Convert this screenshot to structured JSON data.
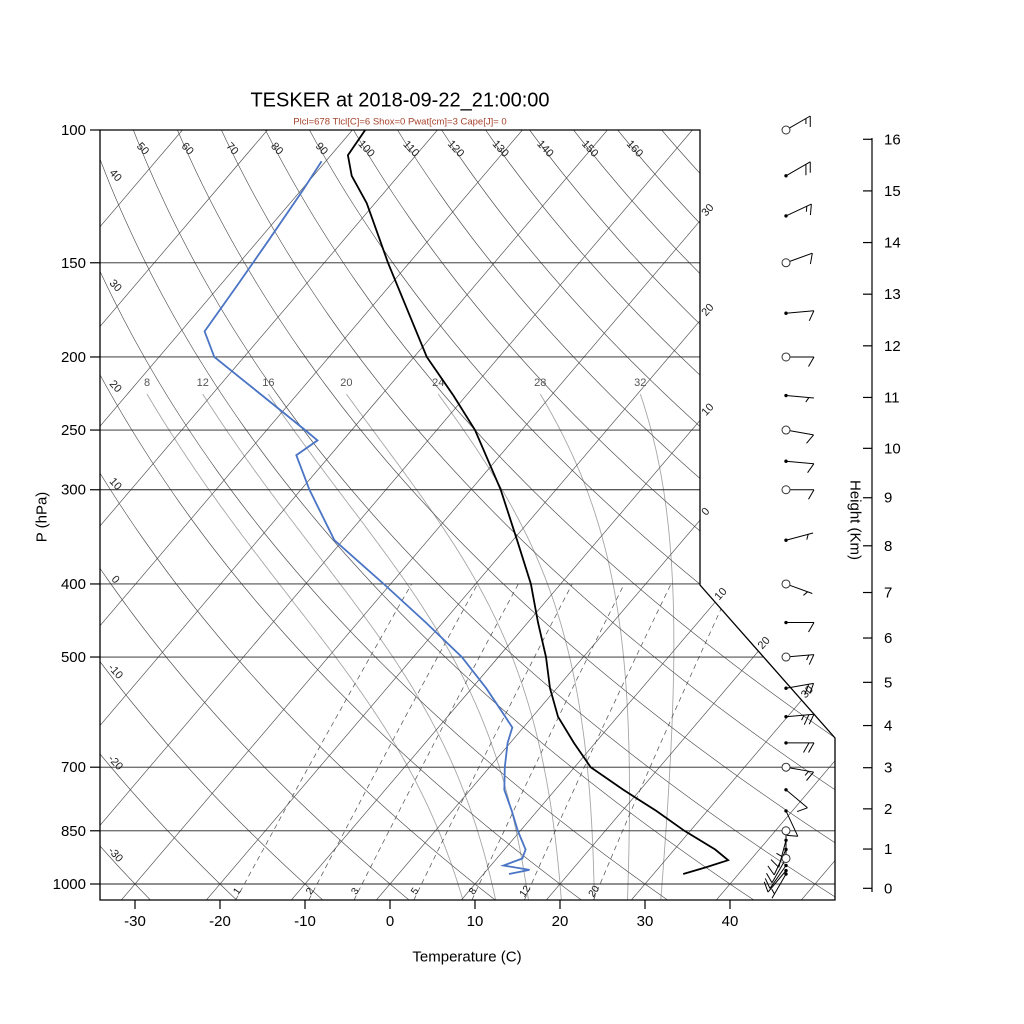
{
  "title": "TESKER at 2018-09-22_21:00:00",
  "subtitle": "Plcl=678 Tlcl[C]=6 Shox=0 Pwat[cm]=3 Cape[J]= 0",
  "axes": {
    "pressure": {
      "title": "P (hPa)",
      "ticks": [
        100,
        150,
        200,
        250,
        300,
        400,
        500,
        700,
        850,
        1000
      ]
    },
    "temperature": {
      "title": "Temperature (C)",
      "ticks": [
        -30,
        -20,
        -10,
        0,
        10,
        20,
        30,
        40
      ]
    },
    "height": {
      "title": "Height (Km)",
      "ticks": [
        0,
        1,
        2,
        3,
        4,
        5,
        6,
        7,
        8,
        9,
        10,
        11,
        12,
        13,
        14,
        15,
        16
      ]
    }
  },
  "colors": {
    "temperature_curve": "#000000",
    "dewpoint_curve": "#4a74c4",
    "subtitle_text": "#a7432c",
    "grid": "#4d4d4d",
    "moist_adiabat": "#a6a6a6",
    "border": "#000000"
  },
  "chart_data": {
    "type": "skewt_log_p_sounding",
    "station": "TESKER",
    "datetime": "2018-09-22_21:00:00",
    "indices": {
      "Plcl": 678,
      "Tlcl_C": 6,
      "Shox": 0,
      "Pwat_cm": 3,
      "Cape_J": 0
    },
    "pressure_range_hPa": [
      100,
      1050
    ],
    "temperature_axis_range_C": [
      -30,
      40
    ],
    "temperature_profile": [
      [
        970,
        33.5
      ],
      [
        950,
        35.5
      ],
      [
        930,
        37.4
      ],
      [
        900,
        34.8
      ],
      [
        850,
        29.3
      ],
      [
        800,
        24
      ],
      [
        750,
        18
      ],
      [
        700,
        11.9
      ],
      [
        650,
        7.5
      ],
      [
        600,
        3
      ],
      [
        550,
        -0.8
      ],
      [
        500,
        -4.4
      ],
      [
        450,
        -8.8
      ],
      [
        400,
        -13.5
      ],
      [
        350,
        -19.5
      ],
      [
        300,
        -26.5
      ],
      [
        250,
        -35.5
      ],
      [
        225,
        -41.5
      ],
      [
        200,
        -48.5
      ],
      [
        175,
        -55
      ],
      [
        150,
        -62.5
      ],
      [
        125,
        -71
      ],
      [
        115,
        -75.5
      ],
      [
        108,
        -78
      ],
      [
        100,
        -78.5
      ]
    ],
    "dewpoint_profile": [
      [
        970,
        13
      ],
      [
        958,
        15
      ],
      [
        945,
        11.5
      ],
      [
        925,
        13
      ],
      [
        900,
        12.5
      ],
      [
        850,
        9.7
      ],
      [
        800,
        7
      ],
      [
        750,
        4
      ],
      [
        700,
        1.8
      ],
      [
        650,
        -0.3
      ],
      [
        620,
        -1.3
      ],
      [
        600,
        -3.2
      ],
      [
        550,
        -8.3
      ],
      [
        500,
        -14.3
      ],
      [
        450,
        -22
      ],
      [
        400,
        -30.8
      ],
      [
        350,
        -41
      ],
      [
        300,
        -49
      ],
      [
        270,
        -54
      ],
      [
        258,
        -53
      ],
      [
        250,
        -55.5
      ],
      [
        225,
        -64
      ],
      [
        200,
        -73.5
      ],
      [
        185,
        -77.2
      ],
      [
        160,
        -78
      ],
      [
        140,
        -78.8
      ],
      [
        120,
        -79.8
      ],
      [
        110,
        -80.5
      ]
    ],
    "wind_profile": [
      [
        100,
        60,
        15
      ],
      [
        115,
        60,
        20
      ],
      [
        130,
        65,
        15
      ],
      [
        150,
        70,
        10
      ],
      [
        175,
        85,
        10
      ],
      [
        200,
        90,
        10
      ],
      [
        225,
        95,
        5
      ],
      [
        250,
        100,
        10
      ],
      [
        275,
        95,
        10
      ],
      [
        300,
        90,
        10
      ],
      [
        350,
        75,
        5
      ],
      [
        400,
        110,
        5
      ],
      [
        450,
        90,
        10
      ],
      [
        500,
        85,
        15
      ],
      [
        550,
        80,
        20
      ],
      [
        600,
        85,
        25
      ],
      [
        650,
        90,
        20
      ],
      [
        700,
        100,
        15
      ],
      [
        750,
        130,
        10
      ],
      [
        800,
        155,
        10
      ],
      [
        850,
        180,
        10
      ],
      [
        875,
        195,
        10
      ],
      [
        900,
        205,
        10
      ],
      [
        925,
        210,
        10
      ],
      [
        945,
        215,
        10
      ],
      [
        960,
        220,
        10
      ],
      [
        970,
        210,
        5
      ]
    ],
    "wind_circle_levels": [
      100,
      150,
      200,
      250,
      300,
      400,
      500,
      700,
      850,
      925
    ],
    "isotherms_C": {
      "min": -120,
      "max": 60,
      "step": 10
    },
    "dry_adiabats_C": {
      "min": -30,
      "max": 170,
      "step": 10
    },
    "dry_adiabat_top_labels": [
      50,
      60,
      70,
      80,
      90,
      100,
      110,
      120,
      130,
      140,
      150,
      160
    ],
    "dry_adiabat_left_labels": [
      40,
      30,
      20,
      10,
      0,
      -10,
      -20,
      -30
    ],
    "moist_adiabats_C": [
      8,
      12,
      16,
      20,
      24,
      28,
      32
    ],
    "mixing_ratio_g_kg": [
      1,
      2,
      3,
      5,
      8,
      12,
      20
    ],
    "isotherm_edge_labels_upper": [
      {
        "value": -30,
        "text": "30"
      },
      {
        "value": -20,
        "text": "20"
      },
      {
        "value": -10,
        "text": "10"
      },
      {
        "value": 0,
        "text": "0"
      }
    ],
    "isotherm_edge_labels_lower": [
      {
        "value": 10,
        "text": "10"
      },
      {
        "value": 20,
        "text": "20"
      },
      {
        "value": 30,
        "text": "30"
      }
    ],
    "legend": "black solid = temperature, blue solid = dewpoint, right column = wind barbs (kt)"
  }
}
